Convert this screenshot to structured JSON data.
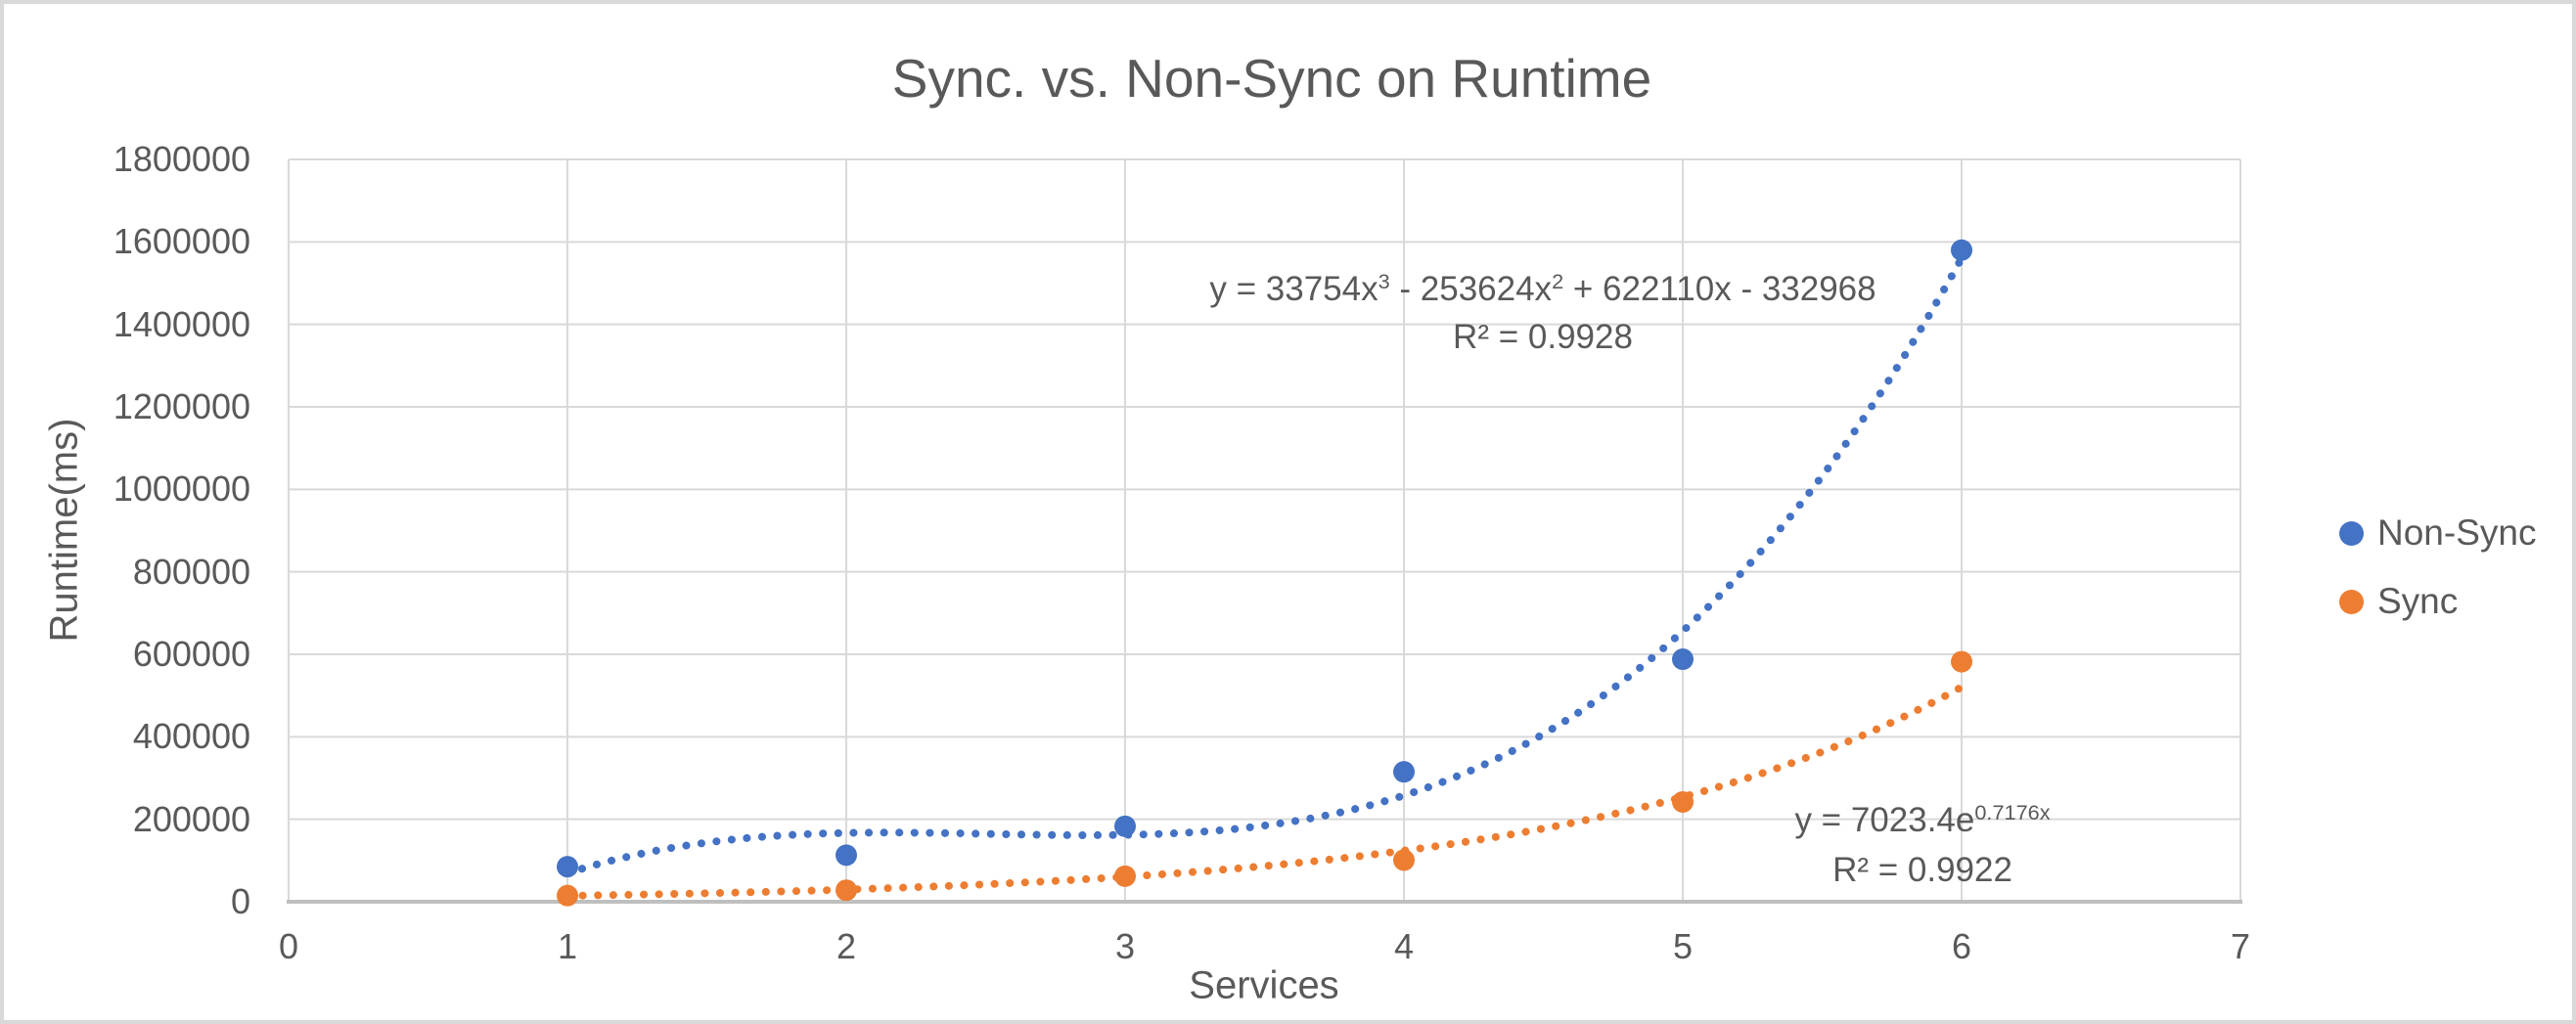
{
  "chart_data": {
    "type": "scatter",
    "title": "Sync. vs. Non-Sync on Runtime",
    "xlabel": "Services",
    "ylabel": "Runtime(ms)",
    "xlim": [
      0,
      7
    ],
    "ylim": [
      0,
      1800000
    ],
    "x_ticks": [
      0,
      1,
      2,
      3,
      4,
      5,
      6,
      7
    ],
    "y_ticks": [
      0,
      200000,
      400000,
      600000,
      800000,
      1000000,
      1200000,
      1400000,
      1600000,
      1800000
    ],
    "grid": true,
    "legend_position": "right",
    "x": [
      1,
      2,
      3,
      4,
      5,
      6
    ],
    "series": [
      {
        "name": "Non-Sync",
        "color": "#4472C4",
        "marker": "circle",
        "values": [
          85000,
          113000,
          183000,
          315000,
          588000,
          1580000
        ],
        "trendline": {
          "kind": "polynomial",
          "order": 3,
          "style": "dotted",
          "range": [
            1,
            6
          ],
          "coefficients": {
            "x3": 33754,
            "x2": -253624,
            "x1": 622110,
            "c": -332968
          },
          "equation_parts": [
            {
              "t": "y = 33754x"
            },
            {
              "t": "3",
              "sup": true
            },
            {
              "t": " - 253624x"
            },
            {
              "t": "2",
              "sup": true
            },
            {
              "t": " + 622110x - 332968"
            }
          ],
          "r_squared": "R² = 0.9928"
        }
      },
      {
        "name": "Sync",
        "color": "#ED7D31",
        "marker": "circle",
        "values": [
          15000,
          28000,
          62000,
          101000,
          242000,
          582000
        ],
        "trendline": {
          "kind": "exponential",
          "a": 7023.4,
          "b": 0.7176,
          "style": "dotted",
          "range": [
            1,
            6
          ],
          "equation_parts": [
            {
              "t": "y = 7023.4e"
            },
            {
              "t": "0.7176x",
              "sup": true
            }
          ],
          "r_squared": "R² = 0.9922"
        }
      }
    ]
  },
  "colors": {
    "text": "#595959",
    "gridline": "#D9D9D9",
    "axis_line": "#BFBFBF",
    "frame_border": "#D9D9D9",
    "background": "#FFFFFF",
    "nonsync_blue": "#4472C4",
    "sync_orange": "#ED7D31"
  }
}
